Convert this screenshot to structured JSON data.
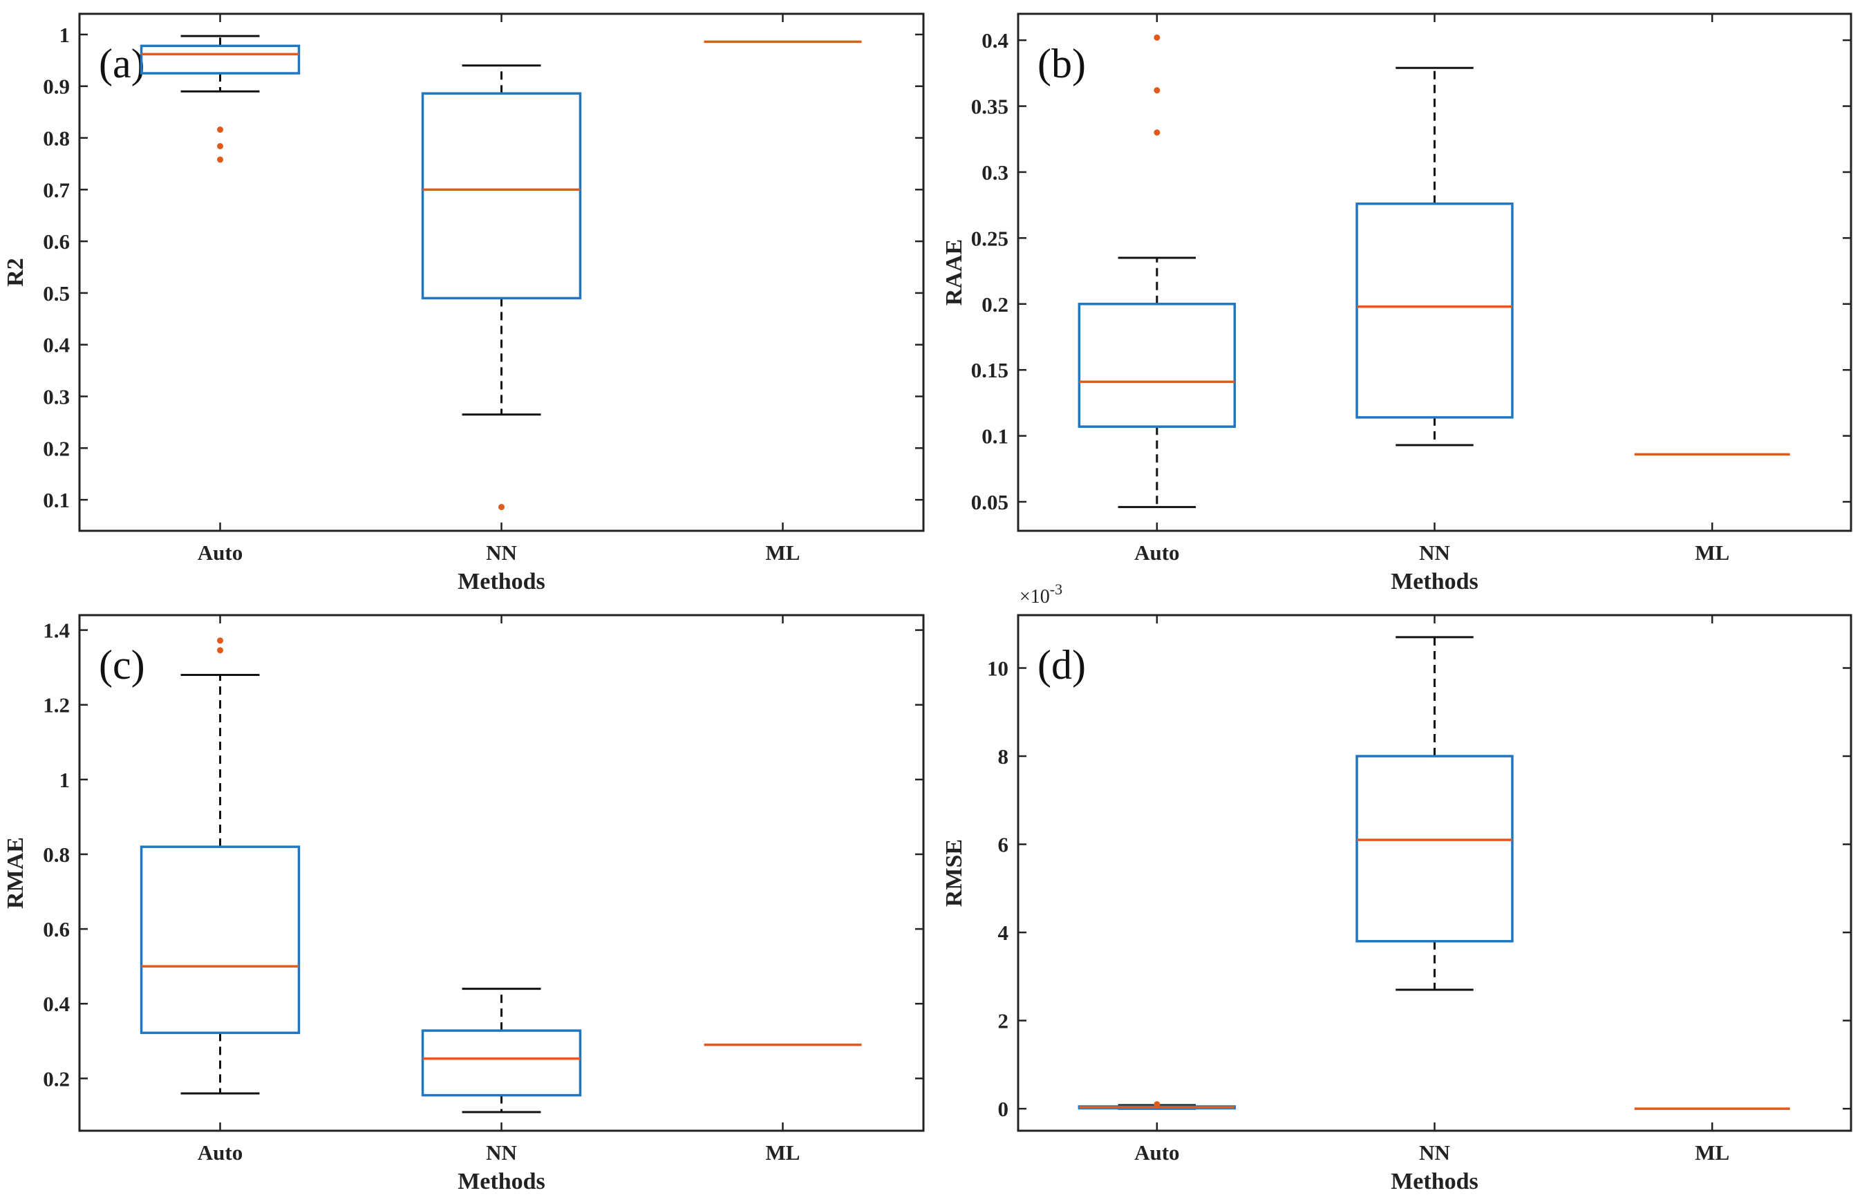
{
  "chart_data": [
    {
      "type": "box",
      "panel_label": "(a)",
      "categories": [
        "Auto",
        "NN",
        "ML"
      ],
      "xlabel": "Methods",
      "ylabel": "R2",
      "ylim": [
        0.04,
        1.04
      ],
      "yticks": [
        0.1,
        0.2,
        0.3,
        0.4,
        0.5,
        0.6,
        0.7,
        0.8,
        0.9,
        1
      ],
      "ytick_labels": [
        "0.1",
        "0.2",
        "0.3",
        "0.4",
        "0.5",
        "0.6",
        "0.7",
        "0.8",
        "0.9",
        "1"
      ],
      "multiplier": "",
      "boxes": [
        {
          "category": "Auto",
          "whisker_low": 0.89,
          "q1": 0.925,
          "median": 0.962,
          "q3": 0.978,
          "whisker_high": 0.997,
          "outliers": [
            0.816,
            0.784,
            0.758
          ]
        },
        {
          "category": "NN",
          "whisker_low": 0.265,
          "q1": 0.49,
          "median": 0.7,
          "q3": 0.886,
          "whisker_high": 0.94,
          "outliers": [
            0.086
          ]
        },
        {
          "category": "ML",
          "whisker_low": 0.986,
          "q1": 0.986,
          "median": 0.986,
          "q3": 0.986,
          "whisker_high": 0.986,
          "outliers": []
        }
      ]
    },
    {
      "type": "box",
      "panel_label": "(b)",
      "categories": [
        "Auto",
        "NN",
        "ML"
      ],
      "xlabel": "Methods",
      "ylabel": "RAAE",
      "ylim": [
        0.028,
        0.42
      ],
      "yticks": [
        0.05,
        0.1,
        0.15,
        0.2,
        0.25,
        0.3,
        0.35,
        0.4
      ],
      "ytick_labels": [
        "0.05",
        "0.1",
        "0.15",
        "0.2",
        "0.25",
        "0.3",
        "0.35",
        "0.4"
      ],
      "multiplier": "",
      "boxes": [
        {
          "category": "Auto",
          "whisker_low": 0.046,
          "q1": 0.107,
          "median": 0.141,
          "q3": 0.2,
          "whisker_high": 0.235,
          "outliers": [
            0.402,
            0.362,
            0.33
          ]
        },
        {
          "category": "NN",
          "whisker_low": 0.093,
          "q1": 0.114,
          "median": 0.198,
          "q3": 0.276,
          "whisker_high": 0.379,
          "outliers": []
        },
        {
          "category": "ML",
          "whisker_low": 0.086,
          "q1": 0.086,
          "median": 0.086,
          "q3": 0.086,
          "whisker_high": 0.086,
          "outliers": []
        }
      ]
    },
    {
      "type": "box",
      "panel_label": "(c)",
      "categories": [
        "Auto",
        "NN",
        "ML"
      ],
      "xlabel": "Methods",
      "ylabel": "RMAE",
      "ylim": [
        0.06,
        1.44
      ],
      "yticks": [
        0.2,
        0.4,
        0.6,
        0.8,
        1,
        1.2,
        1.4
      ],
      "ytick_labels": [
        "0.2",
        "0.4",
        "0.6",
        "0.8",
        "1",
        "1.2",
        "1.4"
      ],
      "multiplier": "",
      "boxes": [
        {
          "category": "Auto",
          "whisker_low": 0.16,
          "q1": 0.322,
          "median": 0.5,
          "q3": 0.82,
          "whisker_high": 1.28,
          "outliers": [
            1.372,
            1.346
          ]
        },
        {
          "category": "NN",
          "whisker_low": 0.11,
          "q1": 0.155,
          "median": 0.253,
          "q3": 0.328,
          "whisker_high": 0.44,
          "outliers": []
        },
        {
          "category": "ML",
          "whisker_low": 0.29,
          "q1": 0.29,
          "median": 0.29,
          "q3": 0.29,
          "whisker_high": 0.29,
          "outliers": []
        }
      ]
    },
    {
      "type": "box",
      "panel_label": "(d)",
      "categories": [
        "Auto",
        "NN",
        "ML"
      ],
      "xlabel": "Methods",
      "ylabel": "RMSE",
      "ylim": [
        -0.5,
        11.2
      ],
      "yticks": [
        0,
        2,
        4,
        6,
        8,
        10
      ],
      "ytick_labels": [
        "0",
        "2",
        "4",
        "6",
        "8",
        "10"
      ],
      "multiplier": "×10",
      "multiplier_exponent": "-3",
      "boxes": [
        {
          "category": "Auto",
          "whisker_low": 0.0,
          "q1": 0.01,
          "median": 0.03,
          "q3": 0.05,
          "whisker_high": 0.08,
          "outliers": [
            0.1
          ]
        },
        {
          "category": "NN",
          "whisker_low": 2.7,
          "q1": 3.8,
          "median": 6.1,
          "q3": 8.0,
          "whisker_high": 10.7,
          "outliers": []
        },
        {
          "category": "ML",
          "whisker_low": 0.0,
          "q1": 0.0,
          "median": 0.0,
          "q3": 0.0,
          "whisker_high": 0.0,
          "outliers": []
        }
      ]
    }
  ],
  "colors": {
    "box": "#1f77c4",
    "median": "#e05a1a",
    "outlier": "#e05a1a",
    "whisker": "#111111",
    "axis": "#222222"
  }
}
